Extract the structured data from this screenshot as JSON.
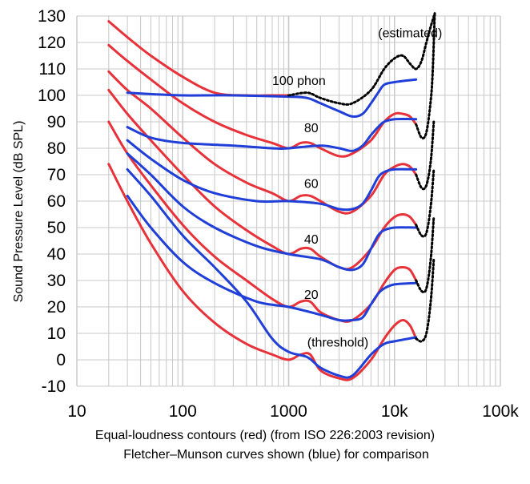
{
  "chart_data": {
    "type": "line",
    "xscale": "log",
    "xlim": [
      10,
      100000
    ],
    "ylim": [
      -10,
      130
    ],
    "grid": true,
    "ylabel": "Sound Pressure Level (dB SPL)",
    "xlabel": "",
    "x_tick_labels": [
      "10",
      "100",
      "1000",
      "10k",
      "100k"
    ],
    "x_tick_values": [
      10,
      100,
      1000,
      10000,
      100000
    ],
    "y_ticks": [
      -10,
      0,
      10,
      20,
      30,
      40,
      50,
      60,
      70,
      80,
      90,
      100,
      110,
      120,
      130
    ],
    "caption_line1": "Equal-loudness contours (red) (from ISO 226:2003 revision)",
    "caption_line2": "Fletcher–Munson curves shown (blue) for comparison",
    "annotations": [
      {
        "text": "(estimated)",
        "x": 7000,
        "y": 122
      },
      {
        "text": "100 phon",
        "x": 700,
        "y": 104
      },
      {
        "text": "80",
        "x": 1400,
        "y": 86
      },
      {
        "text": "60",
        "x": 1400,
        "y": 65
      },
      {
        "text": "40",
        "x": 1400,
        "y": 44
      },
      {
        "text": "20",
        "x": 1400,
        "y": 23
      },
      {
        "text": "(threshold)",
        "x": 1500,
        "y": 5
      }
    ],
    "colors": {
      "iso": "#e8323a",
      "fm": "#1f3fd8",
      "estimated": "#000000",
      "grid": "#c8c8c8"
    },
    "series": [
      {
        "kind": "iso",
        "points": [
          [
            20,
            74
          ],
          [
            30,
            60
          ],
          [
            50,
            44
          ],
          [
            100,
            26
          ],
          [
            200,
            14
          ],
          [
            400,
            6
          ],
          [
            700,
            2
          ],
          [
            1000,
            0
          ],
          [
            1300,
            2
          ],
          [
            1600,
            2
          ],
          [
            2000,
            -4
          ],
          [
            3000,
            -7
          ],
          [
            4000,
            -7
          ],
          [
            6000,
            0
          ],
          [
            8000,
            8
          ],
          [
            10000,
            13
          ],
          [
            12000,
            15
          ],
          [
            14000,
            13
          ],
          [
            16000,
            8
          ]
        ]
      },
      {
        "kind": "iso",
        "points": [
          [
            20,
            90
          ],
          [
            30,
            78
          ],
          [
            50,
            66
          ],
          [
            100,
            51
          ],
          [
            200,
            39
          ],
          [
            400,
            30
          ],
          [
            700,
            23
          ],
          [
            1000,
            20
          ],
          [
            1300,
            22
          ],
          [
            1600,
            22
          ],
          [
            2000,
            18
          ],
          [
            3000,
            15
          ],
          [
            4000,
            15
          ],
          [
            6000,
            21
          ],
          [
            8000,
            29
          ],
          [
            10000,
            34
          ],
          [
            12000,
            35
          ],
          [
            14000,
            34
          ],
          [
            16000,
            30
          ]
        ]
      },
      {
        "kind": "iso",
        "points": [
          [
            20,
            102
          ],
          [
            30,
            93
          ],
          [
            50,
            83
          ],
          [
            100,
            70
          ],
          [
            200,
            58
          ],
          [
            400,
            49
          ],
          [
            700,
            43
          ],
          [
            1000,
            40
          ],
          [
            1300,
            42
          ],
          [
            1600,
            42
          ],
          [
            2000,
            39
          ],
          [
            3000,
            35
          ],
          [
            4000,
            35
          ],
          [
            6000,
            42
          ],
          [
            8000,
            50
          ],
          [
            10000,
            54
          ],
          [
            12000,
            55
          ],
          [
            14000,
            54
          ],
          [
            16000,
            51
          ]
        ]
      },
      {
        "kind": "iso",
        "points": [
          [
            20,
            109
          ],
          [
            30,
            102
          ],
          [
            50,
            95
          ],
          [
            100,
            84
          ],
          [
            200,
            74
          ],
          [
            400,
            67
          ],
          [
            700,
            63
          ],
          [
            1000,
            60
          ],
          [
            1300,
            62
          ],
          [
            1600,
            62
          ],
          [
            2000,
            60
          ],
          [
            3000,
            56
          ],
          [
            4000,
            56
          ],
          [
            6000,
            62
          ],
          [
            8000,
            70
          ],
          [
            10000,
            73
          ],
          [
            12000,
            74
          ],
          [
            14000,
            73
          ],
          [
            16000,
            70
          ]
        ]
      },
      {
        "kind": "iso",
        "points": [
          [
            20,
            119
          ],
          [
            30,
            113
          ],
          [
            50,
            106
          ],
          [
            100,
            97
          ],
          [
            200,
            90
          ],
          [
            400,
            85
          ],
          [
            700,
            82
          ],
          [
            1000,
            80
          ],
          [
            1300,
            82
          ],
          [
            1600,
            82
          ],
          [
            2000,
            80
          ],
          [
            3000,
            77
          ],
          [
            4000,
            78
          ],
          [
            6000,
            83
          ],
          [
            8000,
            90
          ],
          [
            10000,
            93
          ],
          [
            12000,
            93
          ],
          [
            14000,
            92
          ],
          [
            16000,
            89
          ]
        ]
      },
      {
        "kind": "iso",
        "points": [
          [
            20,
            128
          ],
          [
            30,
            122
          ],
          [
            50,
            115
          ],
          [
            100,
            107
          ],
          [
            200,
            101
          ],
          [
            400,
            100
          ],
          [
            700,
            100
          ],
          [
            1000,
            100
          ]
        ]
      },
      {
        "kind": "fm",
        "points": [
          [
            30,
            62
          ],
          [
            50,
            50
          ],
          [
            100,
            37
          ],
          [
            200,
            29
          ],
          [
            500,
            22
          ],
          [
            1000,
            20
          ],
          [
            2000,
            17
          ],
          [
            3000,
            15
          ],
          [
            4000,
            15
          ],
          [
            5000,
            16
          ],
          [
            6000,
            21
          ],
          [
            7000,
            25
          ],
          [
            8000,
            27
          ],
          [
            10000,
            28.5
          ],
          [
            16000,
            29
          ]
        ]
      },
      {
        "kind": "fm",
        "points": [
          [
            30,
            72
          ],
          [
            50,
            62
          ],
          [
            100,
            47
          ],
          [
            200,
            35
          ],
          [
            400,
            22
          ],
          [
            700,
            8
          ],
          [
            1000,
            3
          ],
          [
            1500,
            1
          ],
          [
            2000,
            -3
          ],
          [
            3000,
            -6
          ],
          [
            4000,
            -6
          ],
          [
            6000,
            2
          ],
          [
            8000,
            6
          ],
          [
            10000,
            7
          ],
          [
            16000,
            8.5
          ]
        ]
      },
      {
        "kind": "fm",
        "points": [
          [
            30,
            78
          ],
          [
            50,
            70
          ],
          [
            100,
            58
          ],
          [
            200,
            50
          ],
          [
            500,
            43
          ],
          [
            1000,
            40
          ],
          [
            2000,
            38
          ],
          [
            3000,
            35
          ],
          [
            4000,
            34
          ],
          [
            5000,
            36
          ],
          [
            6000,
            42
          ],
          [
            7000,
            47
          ],
          [
            8000,
            49
          ],
          [
            10000,
            50
          ],
          [
            16000,
            50
          ]
        ]
      },
      {
        "kind": "fm",
        "points": [
          [
            30,
            83
          ],
          [
            50,
            76
          ],
          [
            100,
            68
          ],
          [
            200,
            63
          ],
          [
            500,
            60
          ],
          [
            1000,
            60
          ],
          [
            2000,
            59
          ],
          [
            3000,
            57
          ],
          [
            4000,
            57
          ],
          [
            5000,
            59
          ],
          [
            6000,
            64
          ],
          [
            7000,
            69
          ],
          [
            8000,
            71
          ],
          [
            10000,
            72
          ],
          [
            16000,
            72
          ]
        ]
      },
      {
        "kind": "fm",
        "points": [
          [
            30,
            88
          ],
          [
            50,
            84
          ],
          [
            100,
            82
          ],
          [
            300,
            81
          ],
          [
            700,
            80
          ],
          [
            1000,
            80
          ],
          [
            2000,
            81
          ],
          [
            3000,
            80
          ],
          [
            4000,
            79
          ],
          [
            5000,
            81
          ],
          [
            6000,
            85
          ],
          [
            7000,
            88
          ],
          [
            8000,
            90
          ],
          [
            10000,
            91
          ],
          [
            16000,
            91
          ]
        ]
      },
      {
        "kind": "fm",
        "points": [
          [
            30,
            101
          ],
          [
            50,
            100.5
          ],
          [
            100,
            100
          ],
          [
            300,
            100
          ],
          [
            1000,
            99.5
          ],
          [
            1500,
            99
          ],
          [
            2000,
            97
          ],
          [
            3000,
            94
          ],
          [
            4000,
            92
          ],
          [
            5000,
            93
          ],
          [
            6000,
            97
          ],
          [
            7000,
            101
          ],
          [
            8000,
            104
          ],
          [
            10000,
            105
          ],
          [
            16000,
            106
          ]
        ]
      },
      {
        "kind": "estimated",
        "points": [
          [
            1000,
            100
          ],
          [
            1500,
            101
          ],
          [
            2000,
            99
          ],
          [
            3000,
            97
          ],
          [
            4000,
            97
          ],
          [
            6000,
            102
          ],
          [
            8000,
            110
          ],
          [
            10000,
            114
          ],
          [
            12000,
            115
          ],
          [
            14000,
            112
          ],
          [
            16000,
            110
          ],
          [
            18000,
            113
          ],
          [
            20000,
            120
          ],
          [
            22000,
            126
          ],
          [
            24000,
            131
          ]
        ]
      },
      {
        "kind": "estimated",
        "points": [
          [
            16000,
            89
          ],
          [
            18000,
            84
          ],
          [
            20000,
            86
          ],
          [
            22000,
            98
          ],
          [
            23000,
            110
          ],
          [
            24000,
            131
          ]
        ]
      },
      {
        "kind": "estimated",
        "points": [
          [
            16000,
            70
          ],
          [
            18000,
            65
          ],
          [
            20000,
            66
          ],
          [
            22000,
            75
          ],
          [
            23500,
            90
          ]
        ]
      },
      {
        "kind": "estimated",
        "points": [
          [
            16000,
            51
          ],
          [
            18000,
            47
          ],
          [
            20000,
            48
          ],
          [
            22000,
            58
          ],
          [
            23500,
            72
          ]
        ]
      },
      {
        "kind": "estimated",
        "points": [
          [
            16000,
            30
          ],
          [
            18000,
            26
          ],
          [
            20000,
            27
          ],
          [
            22000,
            38
          ],
          [
            23500,
            54
          ]
        ]
      },
      {
        "kind": "estimated",
        "points": [
          [
            16000,
            8
          ],
          [
            18000,
            7
          ],
          [
            20000,
            10
          ],
          [
            22000,
            22
          ],
          [
            23500,
            38
          ]
        ]
      }
    ]
  }
}
